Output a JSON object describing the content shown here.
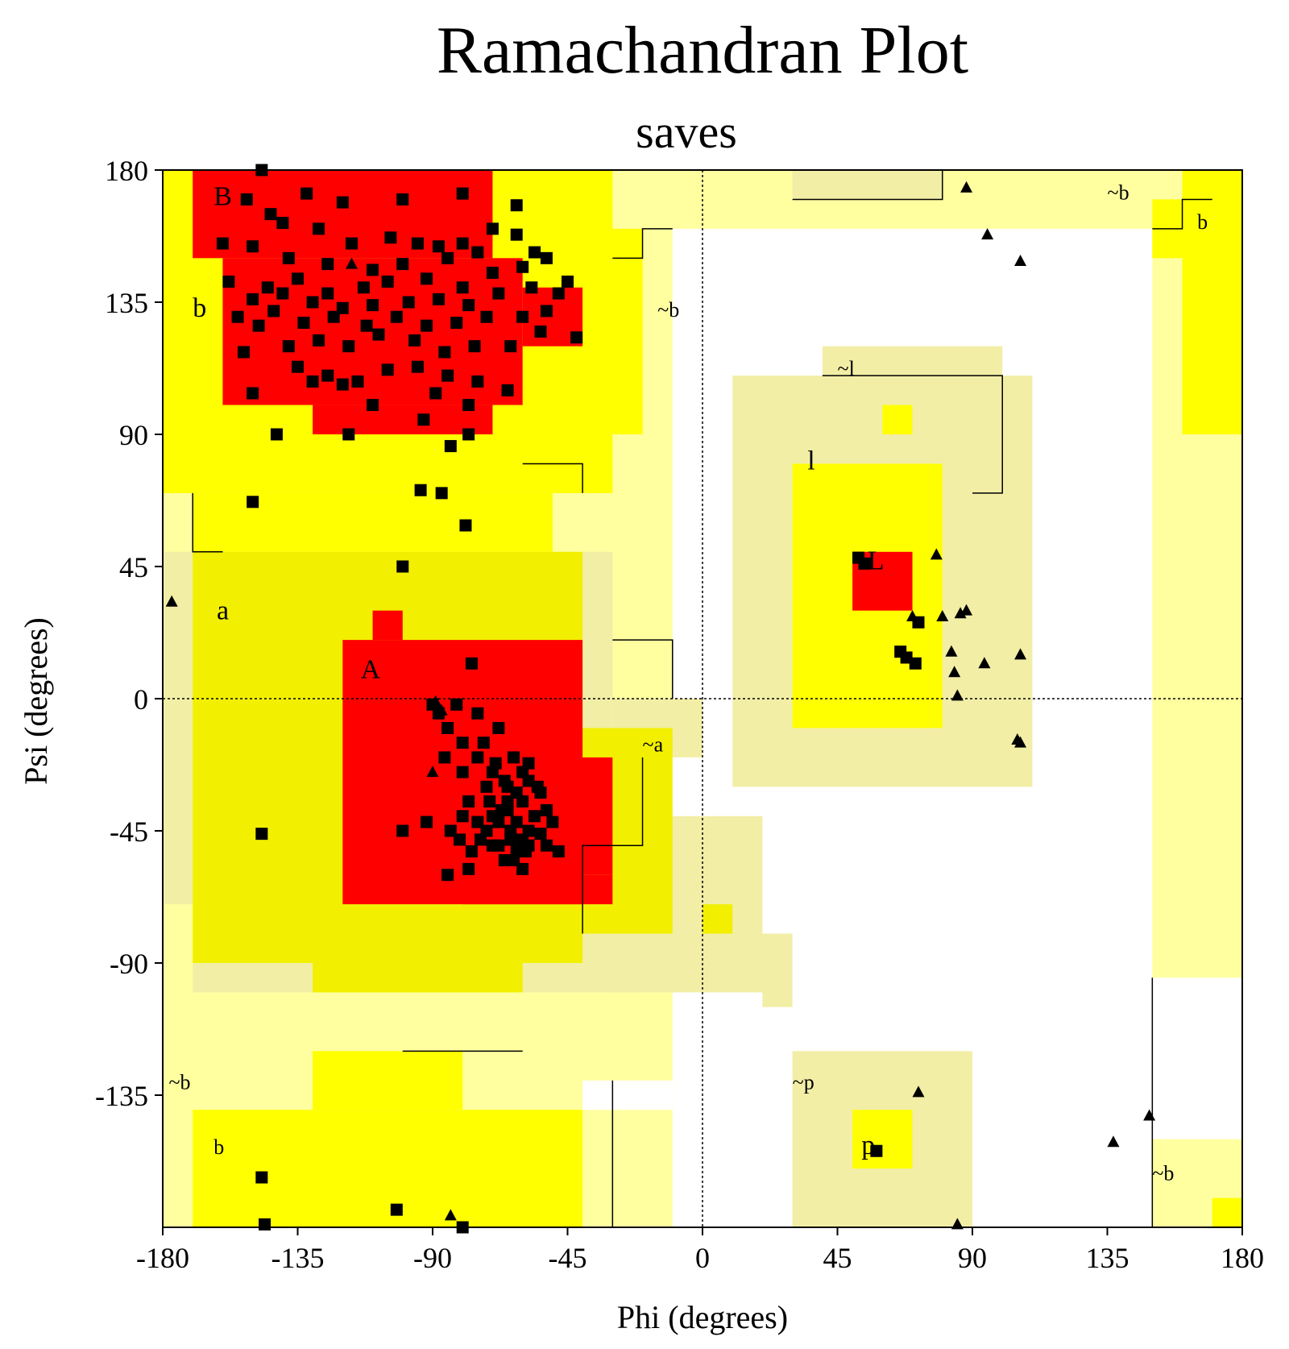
{
  "chart_data": {
    "type": "scatter",
    "title": "Ramachandran Plot",
    "subtitle": "saves",
    "xlabel": "Phi (degrees)",
    "ylabel": "Psi (degrees)",
    "xlim": [
      -180,
      180
    ],
    "ylim": [
      -180,
      180
    ],
    "xticks": [
      -180,
      -135,
      -90,
      -45,
      0,
      45,
      90,
      135,
      180
    ],
    "yticks": [
      180,
      135,
      90,
      45,
      0,
      -45,
      -90,
      -135
    ],
    "grid": false,
    "colors": {
      "core": "#ff0000",
      "allowed": "#ffff00",
      "generous": "#ffffa0",
      "generous_alt": "#f2eea6",
      "allowed_alt": "#f2f000",
      "disallowed": "#ffffff",
      "points": "#000000"
    },
    "region_labels": [
      {
        "text": "B",
        "phi": -163,
        "psi": 168,
        "size": "large"
      },
      {
        "text": "b",
        "phi": -170,
        "psi": 130,
        "size": "large"
      },
      {
        "text": "~b",
        "phi": -15,
        "psi": 130,
        "size": "small"
      },
      {
        "text": "~b",
        "phi": 135,
        "psi": 170,
        "size": "small"
      },
      {
        "text": "b",
        "phi": 165,
        "psi": 160,
        "size": "small"
      },
      {
        "text": "~l",
        "phi": 45,
        "psi": 110,
        "size": "small"
      },
      {
        "text": "l",
        "phi": 35,
        "psi": 78,
        "size": "large"
      },
      {
        "text": "L",
        "phi": 55,
        "psi": 44,
        "size": "large"
      },
      {
        "text": "a",
        "phi": -162,
        "psi": 27,
        "size": "large"
      },
      {
        "text": "A",
        "phi": -114,
        "psi": 7,
        "size": "large"
      },
      {
        "text": "~a",
        "phi": -20,
        "psi": -18,
        "size": "small"
      },
      {
        "text": "~b",
        "phi": -178,
        "psi": -133,
        "size": "small"
      },
      {
        "text": "b",
        "phi": -163,
        "psi": -155,
        "size": "small"
      },
      {
        "text": "~p",
        "phi": 30,
        "psi": -133,
        "size": "small"
      },
      {
        "text": "p",
        "phi": 53,
        "psi": -155,
        "size": "large"
      },
      {
        "text": "~b",
        "phi": 150,
        "psi": -164,
        "size": "small"
      }
    ],
    "series": [
      {
        "marker": "square",
        "points": [
          [
            -147,
            180
          ],
          [
            -132,
            172
          ],
          [
            -120,
            169
          ],
          [
            -100,
            170
          ],
          [
            -80,
            172
          ],
          [
            -62,
            168
          ],
          [
            -152,
            170
          ],
          [
            -144,
            165
          ],
          [
            -140,
            162
          ],
          [
            -128,
            160
          ],
          [
            -117,
            155
          ],
          [
            -104,
            157
          ],
          [
            -95,
            155
          ],
          [
            -88,
            154
          ],
          [
            -80,
            155
          ],
          [
            -70,
            160
          ],
          [
            -160,
            155
          ],
          [
            -150,
            154
          ],
          [
            -138,
            150
          ],
          [
            -125,
            148
          ],
          [
            -110,
            146
          ],
          [
            -100,
            148
          ],
          [
            -85,
            150
          ],
          [
            -75,
            152
          ],
          [
            -62,
            158
          ],
          [
            -56,
            152
          ],
          [
            -145,
            140
          ],
          [
            -135,
            143
          ],
          [
            -125,
            138
          ],
          [
            -113,
            140
          ],
          [
            -105,
            142
          ],
          [
            -92,
            143
          ],
          [
            -80,
            140
          ],
          [
            -70,
            145
          ],
          [
            -60,
            147
          ],
          [
            -52,
            150
          ],
          [
            -158,
            142
          ],
          [
            -150,
            136
          ],
          [
            -140,
            138
          ],
          [
            -130,
            135
          ],
          [
            -120,
            133
          ],
          [
            -110,
            134
          ],
          [
            -98,
            135
          ],
          [
            -88,
            136
          ],
          [
            -78,
            134
          ],
          [
            -68,
            138
          ],
          [
            -57,
            140
          ],
          [
            -48,
            138
          ],
          [
            -155,
            130
          ],
          [
            -143,
            132
          ],
          [
            -133,
            128
          ],
          [
            -123,
            130
          ],
          [
            -112,
            127
          ],
          [
            -102,
            130
          ],
          [
            -92,
            127
          ],
          [
            -82,
            128
          ],
          [
            -72,
            130
          ],
          [
            -60,
            130
          ],
          [
            -52,
            132
          ],
          [
            -148,
            127
          ],
          [
            -138,
            120
          ],
          [
            -128,
            122
          ],
          [
            -118,
            120
          ],
          [
            -108,
            124
          ],
          [
            -96,
            122
          ],
          [
            -86,
            118
          ],
          [
            -76,
            120
          ],
          [
            -64,
            120
          ],
          [
            -54,
            125
          ],
          [
            -153,
            118
          ],
          [
            -135,
            113
          ],
          [
            -125,
            110
          ],
          [
            -115,
            108
          ],
          [
            -105,
            112
          ],
          [
            -95,
            113
          ],
          [
            -85,
            110
          ],
          [
            -75,
            108
          ],
          [
            -65,
            105
          ],
          [
            -110,
            100
          ],
          [
            -120,
            107
          ],
          [
            -130,
            108
          ],
          [
            -89,
            104
          ],
          [
            -78,
            100
          ],
          [
            -150,
            104
          ],
          [
            -142,
            90
          ],
          [
            -118,
            90
          ],
          [
            -93,
            95
          ],
          [
            -84,
            86
          ],
          [
            -78,
            90
          ],
          [
            -150,
            67
          ],
          [
            -94,
            71
          ],
          [
            -87,
            70
          ],
          [
            -79,
            59
          ],
          [
            -100,
            45
          ],
          [
            -45,
            142
          ],
          [
            -42,
            123
          ],
          [
            -77,
            12
          ],
          [
            -90,
            -2
          ],
          [
            -88,
            -5
          ],
          [
            -85,
            -10
          ],
          [
            -80,
            -15
          ],
          [
            -75,
            -20
          ],
          [
            -70,
            -25
          ],
          [
            -65,
            -30
          ],
          [
            -60,
            -35
          ],
          [
            -65,
            -38
          ],
          [
            -70,
            -40
          ],
          [
            -62,
            -42
          ],
          [
            -58,
            -45
          ],
          [
            -64,
            -48
          ],
          [
            -68,
            -50
          ],
          [
            -72,
            -45
          ],
          [
            -75,
            -42
          ],
          [
            -80,
            -40
          ],
          [
            -78,
            -35
          ],
          [
            -72,
            -30
          ],
          [
            -66,
            -28
          ],
          [
            -60,
            -25
          ],
          [
            -55,
            -30
          ],
          [
            -52,
            -38
          ],
          [
            -54,
            -46
          ],
          [
            -58,
            -50
          ],
          [
            -62,
            -52
          ],
          [
            -66,
            -55
          ],
          [
            -70,
            -50
          ],
          [
            -68,
            -42
          ],
          [
            -65,
            -35
          ],
          [
            -62,
            -32
          ],
          [
            -58,
            -28
          ],
          [
            -56,
            -40
          ],
          [
            -60,
            -48
          ],
          [
            -64,
            -45
          ],
          [
            -67,
            -38
          ],
          [
            -71,
            -35
          ],
          [
            -74,
            -48
          ],
          [
            -77,
            -52
          ],
          [
            -81,
            -48
          ],
          [
            -84,
            -45
          ],
          [
            -63,
            -55
          ],
          [
            -59,
            -52
          ],
          [
            -52,
            -50
          ],
          [
            -48,
            -52
          ],
          [
            -50,
            -42
          ],
          [
            -54,
            -32
          ],
          [
            -58,
            -22
          ],
          [
            -69,
            -22
          ],
          [
            -73,
            -15
          ],
          [
            -68,
            -10
          ],
          [
            -63,
            -20
          ],
          [
            -80,
            -25
          ],
          [
            -86,
            -20
          ],
          [
            -75,
            -5
          ],
          [
            -82,
            -2
          ],
          [
            -78,
            -58
          ],
          [
            -85,
            -60
          ],
          [
            -92,
            -42
          ],
          [
            -100,
            -45
          ],
          [
            -60,
            -58
          ],
          [
            -147,
            -46
          ],
          [
            52,
            48
          ],
          [
            54,
            46
          ],
          [
            72,
            26
          ],
          [
            66,
            16
          ],
          [
            68,
            14
          ],
          [
            71,
            12
          ],
          [
            58,
            -154
          ],
          [
            -147,
            -163
          ],
          [
            -146,
            -179
          ],
          [
            -102,
            -174
          ],
          [
            -80,
            -180
          ]
        ]
      },
      {
        "marker": "triangle",
        "points": [
          [
            -177,
            33
          ],
          [
            -117,
            148
          ],
          [
            -89,
            -1
          ],
          [
            -88,
            -3
          ],
          [
            -87,
            -4
          ],
          [
            -90,
            -25
          ],
          [
            88,
            174
          ],
          [
            95,
            158
          ],
          [
            106,
            149
          ],
          [
            78,
            49
          ],
          [
            70,
            28
          ],
          [
            80,
            28
          ],
          [
            86,
            29
          ],
          [
            88,
            30
          ],
          [
            83,
            16
          ],
          [
            84,
            9
          ],
          [
            85,
            1
          ],
          [
            94,
            12
          ],
          [
            106,
            15
          ],
          [
            105,
            -14
          ],
          [
            106,
            -15
          ],
          [
            72,
            -134
          ],
          [
            -84,
            -176
          ],
          [
            85,
            -179
          ],
          [
            137,
            -151
          ],
          [
            149,
            -142
          ]
        ]
      }
    ]
  }
}
